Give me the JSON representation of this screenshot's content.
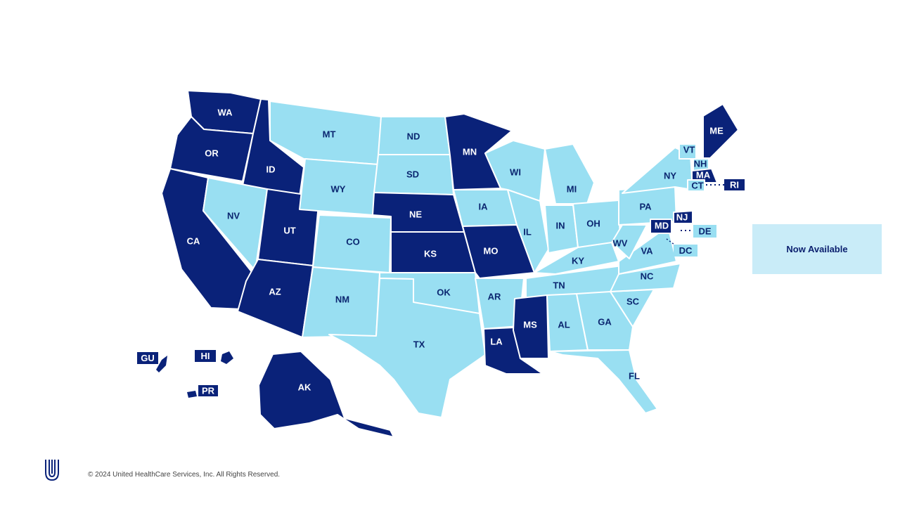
{
  "colors": {
    "dark": "#0a2279",
    "light": "#99dff2",
    "legend_bg": "#c9ecf8",
    "label_on_dark": "#ffffff",
    "label_on_light": "#0b2670"
  },
  "legend": {
    "label": "Now Available",
    "color": "#c9ecf8"
  },
  "footer": {
    "copyright": "© 2024 United HealthCare Services, Inc. All Rights Reserved."
  },
  "logo": {
    "icon": "unitedhealthcare-u-logo"
  },
  "states": [
    {
      "abbr": "WA",
      "status": "dark"
    },
    {
      "abbr": "OR",
      "status": "dark"
    },
    {
      "abbr": "CA",
      "status": "dark"
    },
    {
      "abbr": "ID",
      "status": "dark"
    },
    {
      "abbr": "NV",
      "status": "light"
    },
    {
      "abbr": "UT",
      "status": "dark"
    },
    {
      "abbr": "AZ",
      "status": "dark"
    },
    {
      "abbr": "MT",
      "status": "light"
    },
    {
      "abbr": "WY",
      "status": "light"
    },
    {
      "abbr": "CO",
      "status": "light"
    },
    {
      "abbr": "NM",
      "status": "light"
    },
    {
      "abbr": "ND",
      "status": "light"
    },
    {
      "abbr": "SD",
      "status": "light"
    },
    {
      "abbr": "NE",
      "status": "dark"
    },
    {
      "abbr": "KS",
      "status": "dark"
    },
    {
      "abbr": "OK",
      "status": "light"
    },
    {
      "abbr": "TX",
      "status": "light"
    },
    {
      "abbr": "MN",
      "status": "dark"
    },
    {
      "abbr": "IA",
      "status": "light"
    },
    {
      "abbr": "MO",
      "status": "dark"
    },
    {
      "abbr": "AR",
      "status": "light"
    },
    {
      "abbr": "LA",
      "status": "dark"
    },
    {
      "abbr": "WI",
      "status": "light"
    },
    {
      "abbr": "IL",
      "status": "light"
    },
    {
      "abbr": "MI",
      "status": "light"
    },
    {
      "abbr": "IN",
      "status": "light"
    },
    {
      "abbr": "OH",
      "status": "light"
    },
    {
      "abbr": "KY",
      "status": "light"
    },
    {
      "abbr": "TN",
      "status": "light"
    },
    {
      "abbr": "MS",
      "status": "dark"
    },
    {
      "abbr": "AL",
      "status": "light"
    },
    {
      "abbr": "GA",
      "status": "light"
    },
    {
      "abbr": "FL",
      "status": "light"
    },
    {
      "abbr": "SC",
      "status": "light"
    },
    {
      "abbr": "NC",
      "status": "light"
    },
    {
      "abbr": "VA",
      "status": "light"
    },
    {
      "abbr": "WV",
      "status": "light"
    },
    {
      "abbr": "PA",
      "status": "light"
    },
    {
      "abbr": "NY",
      "status": "light"
    },
    {
      "abbr": "VT",
      "status": "light"
    },
    {
      "abbr": "NH",
      "status": "light"
    },
    {
      "abbr": "ME",
      "status": "dark"
    },
    {
      "abbr": "MA",
      "status": "dark"
    },
    {
      "abbr": "CT",
      "status": "light"
    },
    {
      "abbr": "RI",
      "status": "dark"
    },
    {
      "abbr": "NJ",
      "status": "dark"
    },
    {
      "abbr": "DE",
      "status": "light"
    },
    {
      "abbr": "MD",
      "status": "dark"
    },
    {
      "abbr": "DC",
      "status": "light"
    },
    {
      "abbr": "AK",
      "status": "dark"
    },
    {
      "abbr": "HI",
      "status": "dark"
    },
    {
      "abbr": "GU",
      "status": "dark"
    },
    {
      "abbr": "PR",
      "status": "dark"
    }
  ]
}
